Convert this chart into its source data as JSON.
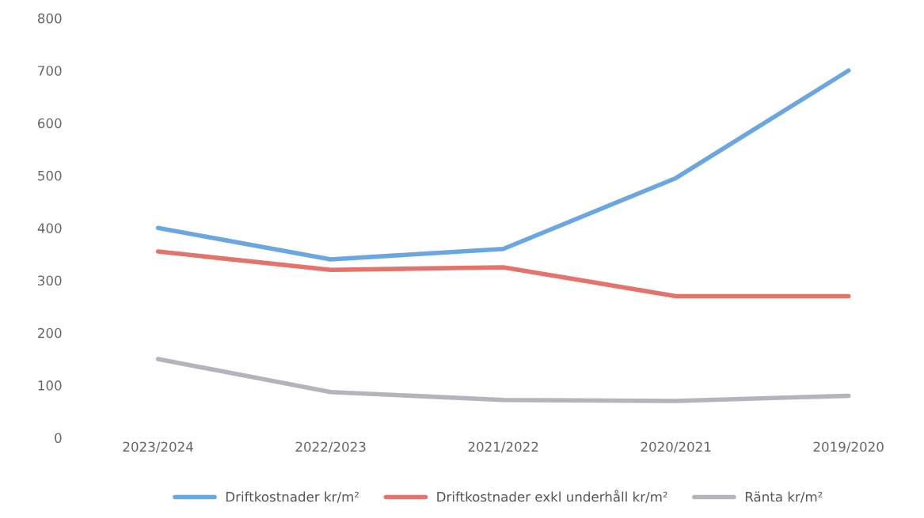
{
  "chart_data": {
    "type": "line",
    "categories": [
      "2023/2024",
      "2022/2023",
      "2021/2022",
      "2020/2021",
      "2019/2020"
    ],
    "series": [
      {
        "name": "Driftkostnader kr/m²",
        "color": "#6aa6e0",
        "values": [
          400,
          340,
          360,
          495,
          700
        ]
      },
      {
        "name": "Driftkostnader exkl underhåll kr/m²",
        "color": "#e5736c",
        "values": [
          355,
          320,
          325,
          270,
          270
        ]
      },
      {
        "name": "Ränta kr/m²",
        "color": "#b4b4bc",
        "values": [
          150,
          87,
          72,
          70,
          80
        ]
      }
    ],
    "ylim": [
      0,
      800
    ],
    "yticks": [
      0,
      100,
      200,
      300,
      400,
      500,
      600,
      700,
      800
    ],
    "grid": false,
    "legend": "bottom",
    "marker": "none",
    "line_style": "solid"
  }
}
